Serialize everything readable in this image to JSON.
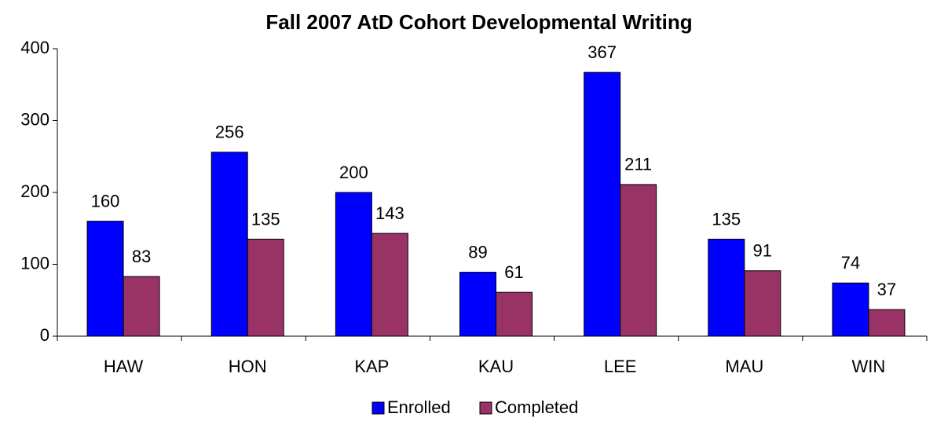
{
  "chart_data": {
    "type": "bar",
    "title": "Fall 2007 AtD Cohort Developmental Writing",
    "categories": [
      "HAW",
      "HON",
      "KAP",
      "KAU",
      "LEE",
      "MAU",
      "WIN"
    ],
    "series": [
      {
        "name": "Enrolled",
        "color": "#0000ff",
        "values": [
          160,
          256,
          200,
          89,
          367,
          135,
          74
        ]
      },
      {
        "name": "Completed",
        "color": "#993366",
        "values": [
          83,
          135,
          143,
          61,
          211,
          91,
          37
        ]
      }
    ],
    "ylim": [
      0,
      400
    ],
    "yticks": [
      0,
      100,
      200,
      300,
      400
    ],
    "grid": false,
    "legend": "bottom"
  }
}
